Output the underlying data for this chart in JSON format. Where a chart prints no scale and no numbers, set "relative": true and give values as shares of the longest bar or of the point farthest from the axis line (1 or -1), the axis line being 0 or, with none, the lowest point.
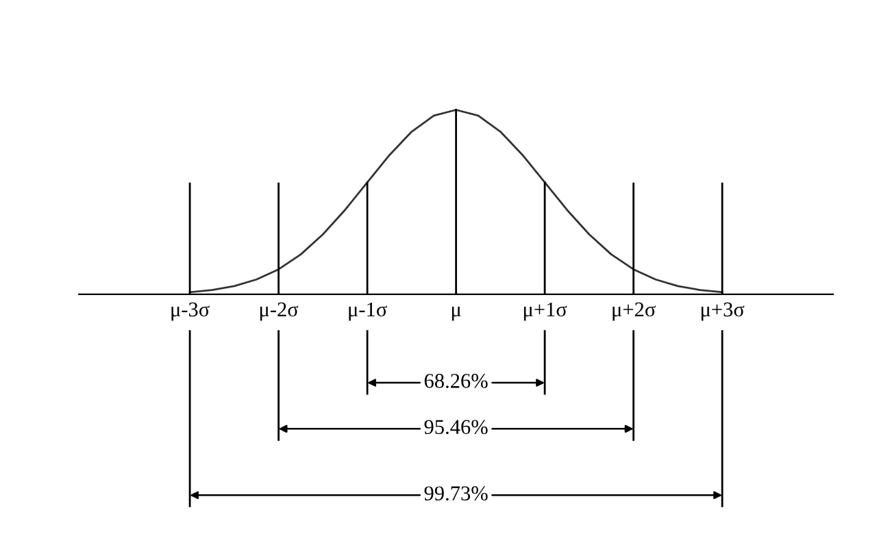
{
  "chart_data": {
    "type": "line",
    "relative": true,
    "categories": [
      "μ-3σ",
      null,
      null,
      null,
      "μ-2σ",
      null,
      null,
      null,
      "μ-1σ",
      null,
      null,
      null,
      "μ",
      null,
      null,
      null,
      "μ+1σ",
      null,
      null,
      null,
      "μ+2σ",
      null,
      null,
      null,
      "μ+3σ"
    ],
    "series": [
      {
        "color": "#333333",
        "values": [
          0.011,
          0.023,
          0.044,
          0.08,
          0.135,
          0.216,
          0.325,
          0.458,
          0.607,
          0.755,
          0.882,
          0.969,
          1,
          0.969,
          0.882,
          0.755,
          0.607,
          0.458,
          0.325,
          0.216,
          0.135,
          0.08,
          0.044,
          0.023,
          0.011
        ]
      }
    ],
    "marker": "none",
    "line_style": "solid",
    "grid": false,
    "ref_lines": [
      {
        "axis": "x",
        "value": "μ-3σ"
      },
      {
        "axis": "x",
        "value": "μ-2σ"
      },
      {
        "axis": "x",
        "value": "μ-1σ"
      },
      {
        "axis": "x",
        "value": "μ"
      },
      {
        "axis": "x",
        "value": "μ+1σ"
      },
      {
        "axis": "x",
        "value": "μ+2σ"
      },
      {
        "axis": "x",
        "value": "μ+3σ"
      }
    ],
    "annotations": [
      "68.26%",
      "95.46%",
      "99.73%"
    ]
  }
}
